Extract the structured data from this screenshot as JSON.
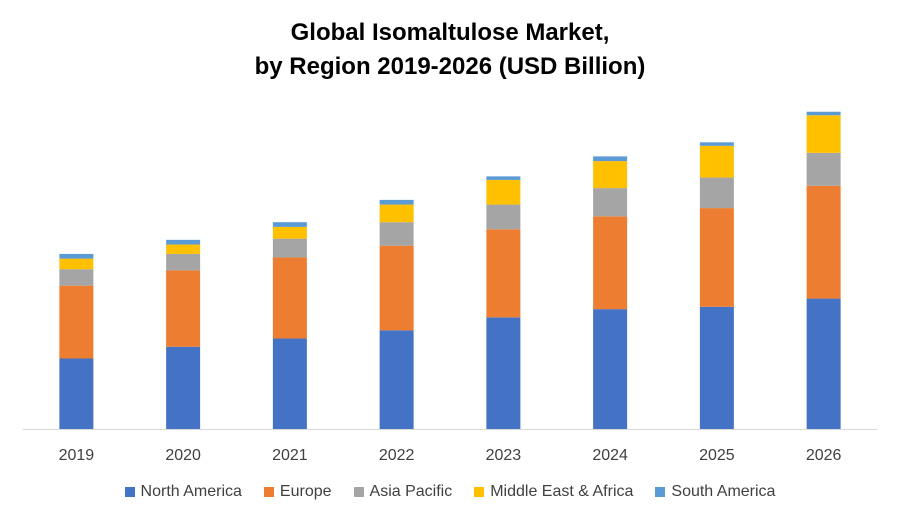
{
  "title_line1": "Global Isomaltulose Market,",
  "title_line2": "by Region 2019-2026 (USD Billion)",
  "chart_data": {
    "type": "bar",
    "stacked": true,
    "categories": [
      "2019",
      "2020",
      "2021",
      "2022",
      "2023",
      "2024",
      "2025",
      "2026"
    ],
    "series": [
      {
        "name": "North America",
        "color": "#4472C4",
        "values": [
          60,
          70,
          77,
          84,
          95,
          102,
          104,
          111
        ]
      },
      {
        "name": "Europe",
        "color": "#ED7D31",
        "values": [
          62,
          65,
          69,
          72,
          75,
          79,
          84,
          96
        ]
      },
      {
        "name": "Asia Pacific",
        "color": "#A5A5A5",
        "values": [
          14,
          14,
          16,
          20,
          21,
          24,
          26,
          28
        ]
      },
      {
        "name": "Middle East & Africa",
        "color": "#FFC000",
        "values": [
          9,
          8,
          10,
          15,
          21,
          23,
          27,
          32
        ]
      },
      {
        "name": "South America",
        "color": "#5B9BD5",
        "values": [
          4,
          4,
          4,
          4,
          3,
          4,
          3,
          3
        ]
      }
    ],
    "y_axis_visible": false,
    "ylim": [
      0,
      280
    ],
    "grid": false,
    "legend": "bottom"
  }
}
